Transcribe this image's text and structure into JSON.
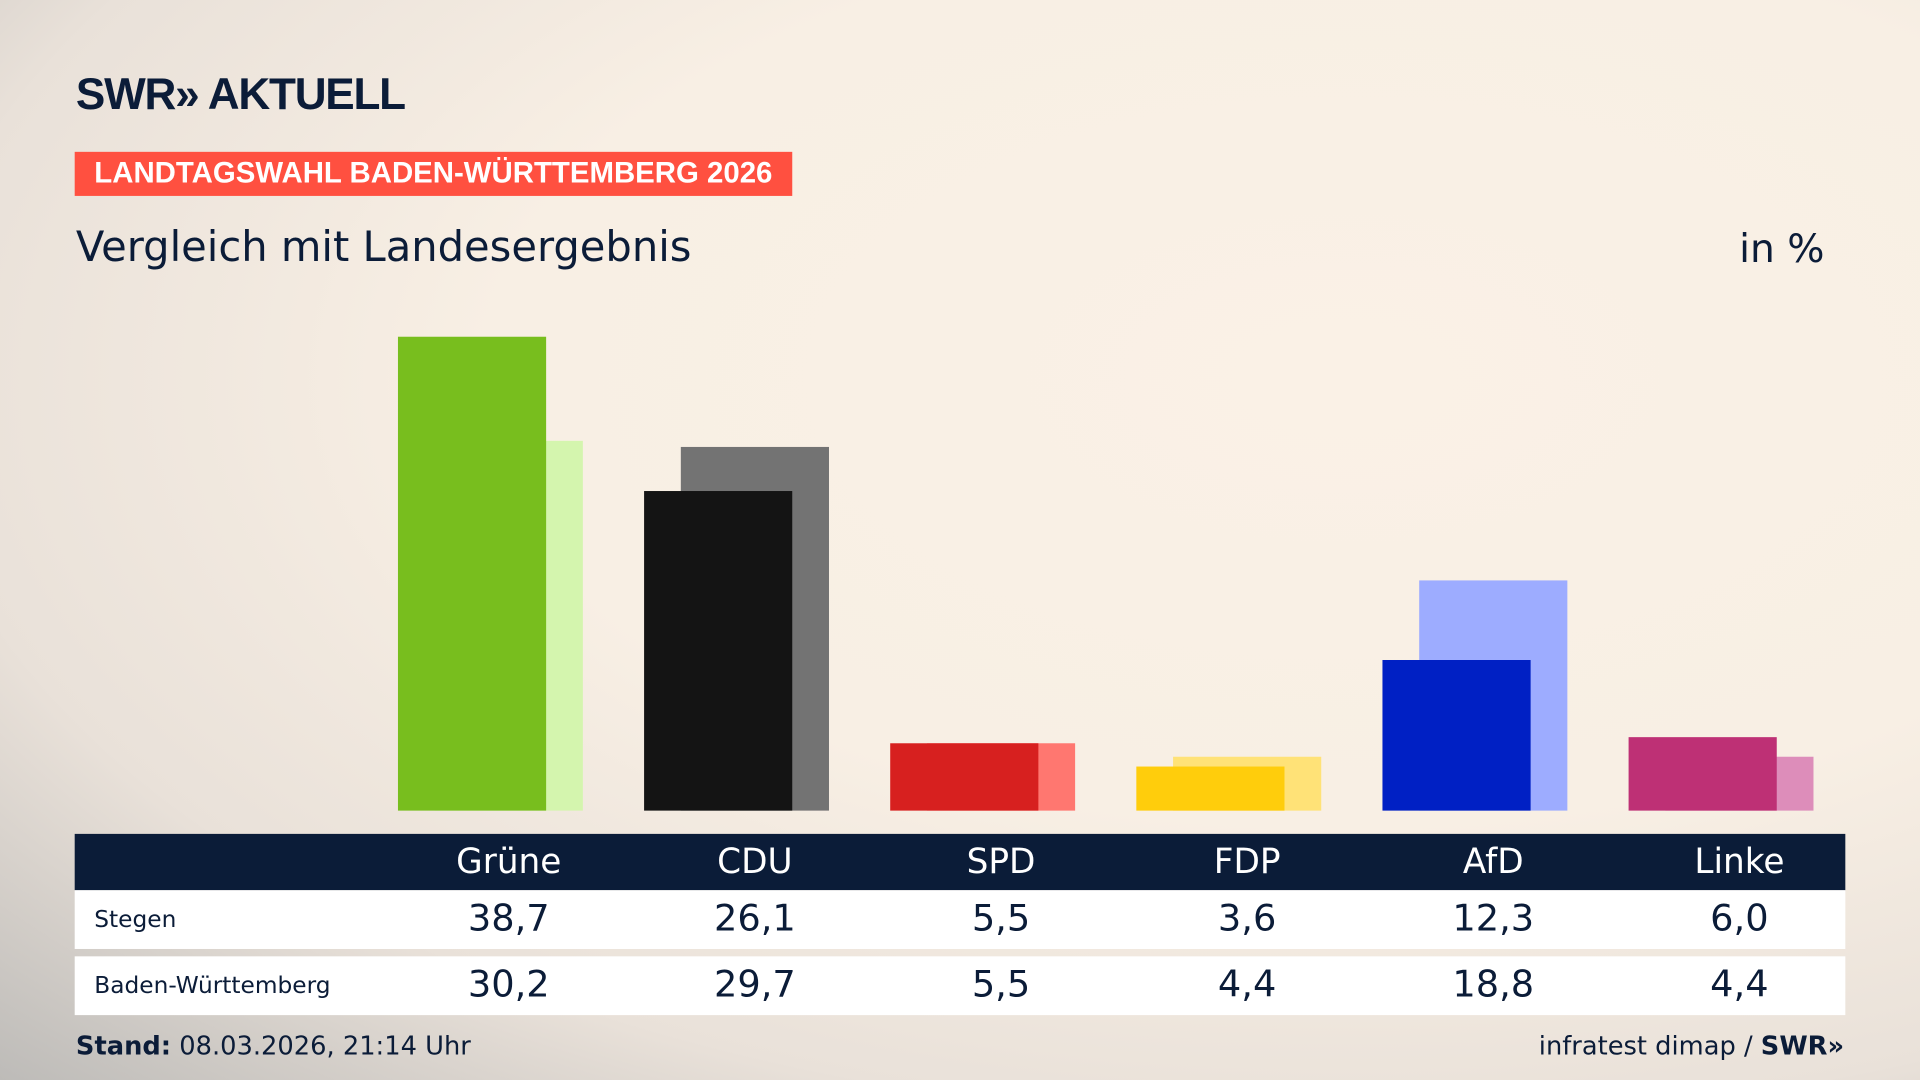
{
  "header": {
    "logo": "SWR» AKTUELL",
    "kicker": "LANDTAGSWAHL BADEN-WÜRTTEMBERG 2026",
    "subtitle": "Vergleich mit Landesergebnis",
    "unit": "in %"
  },
  "chart_data": {
    "type": "bar",
    "categories": [
      "Grüne",
      "CDU",
      "SPD",
      "FDP",
      "AfD",
      "Linke"
    ],
    "series": [
      {
        "name": "Stegen",
        "values": [
          38.7,
          26.1,
          5.5,
          3.6,
          12.3,
          6.0
        ],
        "colors": [
          "#78be1e",
          "#141414",
          "#d7201f",
          "#ffcd0c",
          "#0020c4",
          "#be3075"
        ]
      },
      {
        "name": "Baden-Württemberg",
        "values": [
          30.2,
          29.7,
          5.5,
          4.4,
          18.8,
          4.4
        ],
        "colors": [
          "#d4f5ae",
          "#737373",
          "#ff7770",
          "#ffe277",
          "#9dacff",
          "#dd8dba"
        ]
      }
    ],
    "display_values": [
      [
        "38,7",
        "26,1",
        "5,5",
        "3,6",
        "12,3",
        "6,0"
      ],
      [
        "30,2",
        "29,7",
        "5,5",
        "4,4",
        "18,8",
        "4,4"
      ]
    ],
    "ylim": [
      0,
      40
    ]
  },
  "footer": {
    "stand_label": "Stand:",
    "stand_value": " 08.03.2026, 21:14 Uhr",
    "source": "infratest dimap / ",
    "source_logo": "SWR»"
  }
}
